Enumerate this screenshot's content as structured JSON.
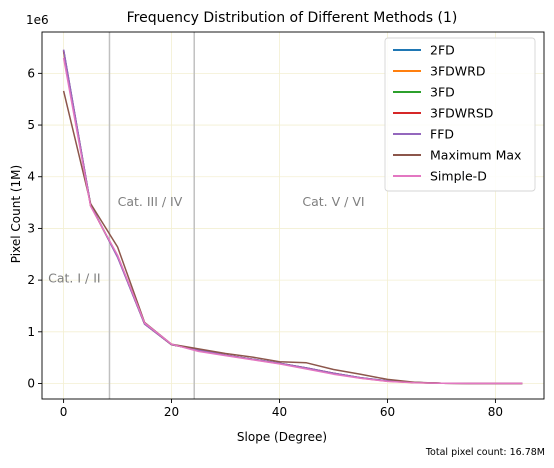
{
  "chart_data": {
    "type": "line",
    "title": "Frequency Distribution of Different Methods (1)",
    "xlabel": "Slope (Degree)",
    "ylabel": "Pixel Count (1M)",
    "y_offset_text": "1e6",
    "footnote": "Total pixel count: 16.78M",
    "xlim": [
      -4,
      89
    ],
    "ylim": [
      -300000,
      6800000
    ],
    "x_ticks": [
      0,
      20,
      40,
      60,
      80
    ],
    "y_ticks": [
      0,
      1000000,
      2000000,
      3000000,
      4000000,
      5000000,
      6000000
    ],
    "x_tick_labels": [
      "0",
      "20",
      "40",
      "60",
      "80"
    ],
    "y_tick_labels": [
      "0",
      "1",
      "2",
      "3",
      "4",
      "5",
      "6"
    ],
    "grid": true,
    "legend_position": "top-right",
    "vlines": [
      {
        "x": 8.5,
        "color": "#c0c0c0"
      },
      {
        "x": 24.2,
        "color": "#c0c0c0"
      }
    ],
    "annotations": [
      {
        "text": "Cat. I / II",
        "x": 2,
        "y": 1950000
      },
      {
        "text": "Cat. III / IV",
        "x": 16,
        "y": 3430000
      },
      {
        "text": "Cat. V / VI",
        "x": 50,
        "y": 3430000
      }
    ],
    "x": [
      0,
      5,
      10,
      15,
      20,
      25,
      30,
      35,
      40,
      45,
      50,
      55,
      60,
      65,
      70,
      75,
      80,
      85
    ],
    "series": [
      {
        "name": "2FD",
        "color": "#1f77b4",
        "values": [
          6450000,
          3450000,
          2450000,
          1150000,
          750000,
          650000,
          550000,
          470000,
          390000,
          300000,
          200000,
          110000,
          50000,
          20000,
          5000,
          2000,
          1000,
          1000
        ]
      },
      {
        "name": "3FDWRD",
        "color": "#ff7f0e",
        "values": [
          6420000,
          3440000,
          2460000,
          1160000,
          755000,
          645000,
          545000,
          465000,
          385000,
          295000,
          195000,
          105000,
          45000,
          18000,
          5000,
          2000,
          1000,
          1000
        ]
      },
      {
        "name": "3FD",
        "color": "#2ca02c",
        "values": [
          6430000,
          3450000,
          2450000,
          1155000,
          752000,
          648000,
          548000,
          468000,
          388000,
          298000,
          198000,
          108000,
          48000,
          19000,
          5000,
          2000,
          1000,
          1000
        ]
      },
      {
        "name": "3FDWRSD",
        "color": "#d62728",
        "values": [
          6440000,
          3445000,
          2455000,
          1152000,
          751000,
          649000,
          549000,
          469000,
          389000,
          299000,
          199000,
          109000,
          49000,
          19500,
          5000,
          2000,
          1000,
          1000
        ]
      },
      {
        "name": "FFD",
        "color": "#9467bd",
        "values": [
          6460000,
          3460000,
          2440000,
          1150000,
          750000,
          650000,
          550000,
          470000,
          390000,
          300000,
          200000,
          110000,
          50000,
          20000,
          5000,
          2000,
          1000,
          1000
        ]
      },
      {
        "name": "Maximum Max",
        "color": "#8c564b",
        "values": [
          5660000,
          3480000,
          2640000,
          1180000,
          760000,
          670000,
          580000,
          510000,
          420000,
          400000,
          270000,
          180000,
          80000,
          25000,
          5000,
          2000,
          1000,
          1000
        ]
      },
      {
        "name": "Simple-D",
        "color": "#e377c2",
        "values": [
          6300000,
          3430000,
          2480000,
          1170000,
          760000,
          620000,
          540000,
          460000,
          380000,
          280000,
          180000,
          100000,
          40000,
          15000,
          5000,
          2000,
          1000,
          1000
        ]
      }
    ]
  }
}
